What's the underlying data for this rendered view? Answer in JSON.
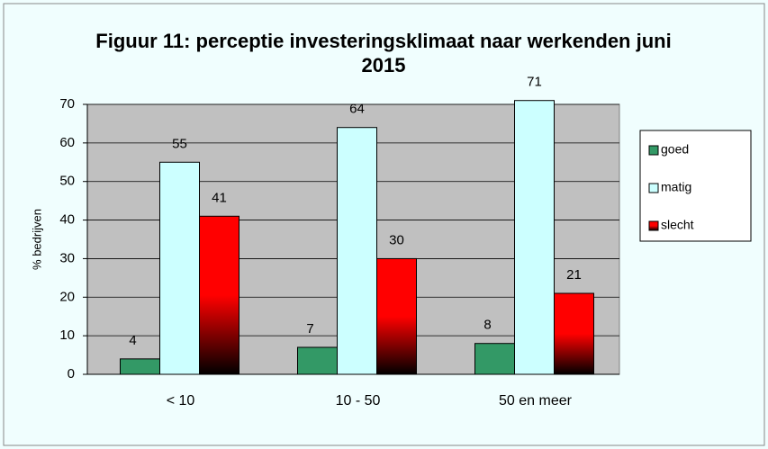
{
  "chart_data": {
    "type": "bar",
    "title": "Figuur 11: perceptie investeringsklimaat naar werkenden juni 2015",
    "y_label": "% bedrijven",
    "categories": [
      "< 10",
      "10 - 50",
      "50 en meer"
    ],
    "series": [
      {
        "name": "goed",
        "color": "#339966",
        "values": [
          4,
          7,
          8
        ]
      },
      {
        "name": "matig",
        "color": "#ccffff",
        "values": [
          55,
          64,
          71
        ]
      },
      {
        "name": "slecht",
        "color": "#ff0000",
        "values": [
          41,
          30,
          21
        ]
      }
    ],
    "ylim": [
      0,
      70
    ],
    "yticks": [
      0,
      10,
      20,
      30,
      40,
      50,
      60,
      70
    ],
    "grid": true,
    "legend": "right"
  }
}
